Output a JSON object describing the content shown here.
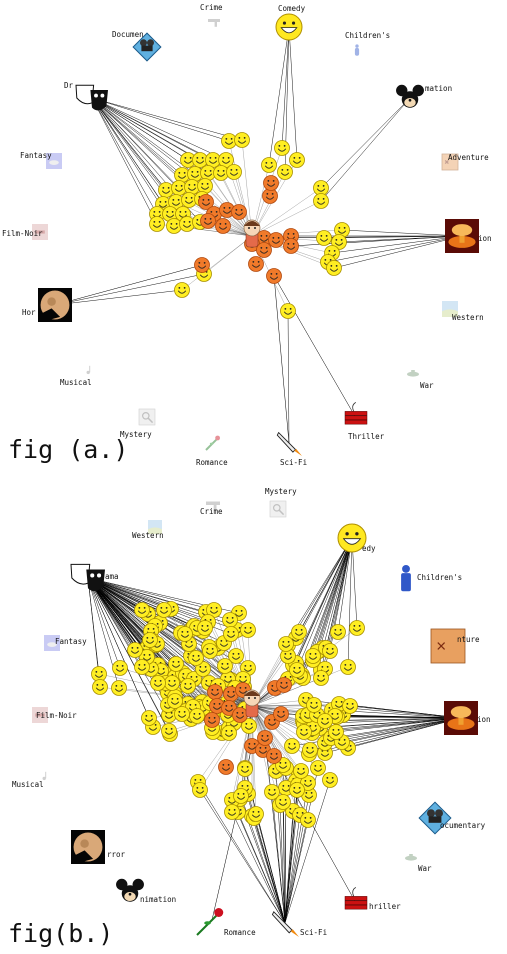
{
  "panel_a": {
    "caption": "fig (a.)",
    "genres": [
      {
        "id": "crime",
        "label": "Crime",
        "icon": "gun-icon",
        "faint": true
      },
      {
        "id": "comedy",
        "label": "Comedy",
        "icon": "big-smiley-icon",
        "faint": false
      },
      {
        "id": "documentary",
        "label": "Documen",
        "icon": "film-camera-icon",
        "faint": false
      },
      {
        "id": "childrens",
        "label": "Children's",
        "icon": "child-figure-icon",
        "faint": true
      },
      {
        "id": "drama",
        "label": "Dr",
        "icon": "theater-masks-icon",
        "faint": false
      },
      {
        "id": "animation",
        "label": "mation",
        "icon": "cartoon-mouse-icon",
        "faint": false
      },
      {
        "id": "fantasy",
        "label": "Fantasy",
        "icon": "fantasy-icon",
        "faint": true
      },
      {
        "id": "adventure",
        "label": "Adventure",
        "icon": "treasure-map-icon",
        "faint": true
      },
      {
        "id": "film-noir",
        "label": "Film-Noir",
        "icon": "film-noir-icon",
        "faint": true
      },
      {
        "id": "action",
        "label": "ion",
        "icon": "explosion-icon",
        "faint": false
      },
      {
        "id": "horror",
        "label": "Hor",
        "icon": "moon-icon",
        "faint": false
      },
      {
        "id": "western",
        "label": "Western",
        "icon": "desert-icon",
        "faint": true
      },
      {
        "id": "musical",
        "label": "Musical",
        "icon": "music-note-icon",
        "faint": true
      },
      {
        "id": "war",
        "label": "War",
        "icon": "tank-icon",
        "faint": true
      },
      {
        "id": "mystery",
        "label": "Mystery",
        "icon": "magnifier-icon",
        "faint": true
      },
      {
        "id": "thriller",
        "label": "Thriller",
        "icon": "dynamite-icon",
        "faint": false
      },
      {
        "id": "romance",
        "label": "Romance",
        "icon": "rose-icon",
        "faint": true
      },
      {
        "id": "scifi",
        "label": "Sci-Fi",
        "icon": "rocket-icon",
        "faint": false
      }
    ]
  },
  "panel_b": {
    "caption": "fig(b.)",
    "genres": [
      {
        "id": "mystery",
        "label": "Mystery",
        "icon": "magnifier-icon",
        "faint": true
      },
      {
        "id": "crime",
        "label": "Crime",
        "icon": "gun-icon",
        "faint": true
      },
      {
        "id": "western",
        "label": "Western",
        "icon": "desert-icon",
        "faint": true
      },
      {
        "id": "comedy",
        "label": "edy",
        "icon": "big-smiley-icon",
        "faint": false
      },
      {
        "id": "drama",
        "label": "ama",
        "icon": "theater-masks-icon",
        "faint": false
      },
      {
        "id": "childrens",
        "label": "Children's",
        "icon": "child-figure-icon",
        "faint": false
      },
      {
        "id": "fantasy",
        "label": "Fantasy",
        "icon": "fantasy-icon",
        "faint": true
      },
      {
        "id": "adventure",
        "label": "nture",
        "icon": "treasure-map-icon",
        "faint": false
      },
      {
        "id": "film-noir",
        "label": "Film-Noir",
        "icon": "film-noir-icon",
        "faint": true
      },
      {
        "id": "action",
        "label": "ion",
        "icon": "explosion-icon",
        "faint": false
      },
      {
        "id": "musical",
        "label": "Musical",
        "icon": "music-note-icon",
        "faint": true
      },
      {
        "id": "documentary",
        "label": "ocumentary",
        "icon": "film-camera-icon",
        "faint": false
      },
      {
        "id": "horror",
        "label": "rror",
        "icon": "moon-icon",
        "faint": false
      },
      {
        "id": "war",
        "label": "War",
        "icon": "tank-icon",
        "faint": true
      },
      {
        "id": "animation",
        "label": "nimation",
        "icon": "cartoon-mouse-icon",
        "faint": false
      },
      {
        "id": "thriller",
        "label": "hriller",
        "icon": "dynamite-icon",
        "faint": false
      },
      {
        "id": "romance",
        "label": "Romance",
        "icon": "rose-icon",
        "faint": false
      },
      {
        "id": "scifi",
        "label": "Sci-Fi",
        "icon": "rocket-icon",
        "faint": false
      }
    ]
  },
  "colors": {
    "liked_movie": "#ffee22",
    "liked_movie_stroke": "#a88f00",
    "recommended_movie": "#f07a2a",
    "recommended_movie_stroke": "#b0480e",
    "edge": "#000000",
    "user_face": "#f6d7b8"
  }
}
